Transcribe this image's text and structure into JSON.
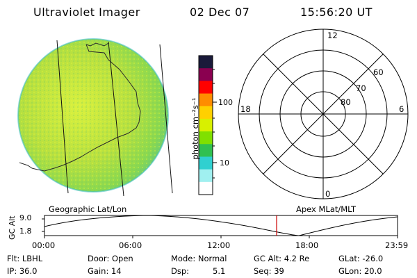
{
  "header": {
    "instrument": "Ultraviolet Imager",
    "date": "02 Dec 07",
    "time": "15:56:20 UT"
  },
  "colorbar": {
    "unit_label": "photon cm⁻²s⁻¹",
    "ticks": [
      "100",
      "10"
    ],
    "scale": "log",
    "colors": [
      "#1a1a3a",
      "#8a0050",
      "#ff0000",
      "#ff8c00",
      "#ffd000",
      "#d8f000",
      "#80e000",
      "#30c050",
      "#30d0d0",
      "#a0f0f0",
      "#ffffff"
    ]
  },
  "geo_panel": {
    "label": "Geographic Lat/Lon",
    "fill_color": "#b8e040"
  },
  "polar_panel": {
    "label": "Apex MLat/MLT",
    "mlt_labels": [
      "12",
      "18",
      "6",
      "0"
    ],
    "mlat_labels": [
      "60",
      "70",
      "80"
    ]
  },
  "altitude_plot": {
    "ylabel": "GC Alt",
    "y_ticks": [
      "9.0",
      "1.8"
    ],
    "x_ticks": [
      "00:00",
      "06:00",
      "12:00",
      "18:00",
      "23:59"
    ],
    "current_marker_color": "#cc0000"
  },
  "info": {
    "flt": "Flt: LBHL",
    "door": "Door: Open",
    "mode": "Mode: Normal",
    "gc_alt": "GC Alt: 4.2 Re",
    "glat": "GLat: -26.0",
    "ip": "IP: 36.0",
    "gain": "Gain: 14",
    "dsp_label": "Dsp:",
    "dsp_value": "5.1",
    "seq": "Seq: 39",
    "glon": "GLon: 20.0"
  }
}
